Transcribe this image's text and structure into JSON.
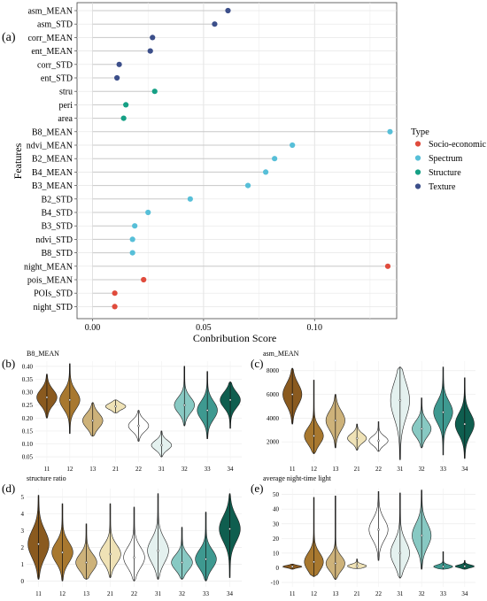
{
  "colors": {
    "Socio-economic": "#e04b3c",
    "Spectrum": "#57bfd8",
    "Structure": "#16a085",
    "Texture": "#3c4f8a"
  },
  "chart_data": [
    {
      "type": "scatter",
      "panel": "(a)",
      "xlabel": "Conbribution Score",
      "ylabel": "Features",
      "xlim": [
        -0.007,
        0.137
      ],
      "xticks": [
        0.0,
        0.05,
        0.1
      ],
      "xtick_labels": [
        "0.00",
        "0.05",
        "0.10"
      ],
      "grid": true,
      "legend_title": "Type",
      "legend_entries": [
        "Socio-economic",
        "Spectrum",
        "Structure",
        "Texture"
      ],
      "legend_position": "right",
      "features": [
        "asm_MEAN",
        "asm_STD",
        "corr_MEAN",
        "ent_MEAN",
        "corr_STD",
        "ent_STD",
        "stru",
        "peri",
        "area",
        "B8_MEAN",
        "ndvi_MEAN",
        "B2_MEAN",
        "B4_MEAN",
        "B3_MEAN",
        "B2_STD",
        "B4_STD",
        "B3_STD",
        "ndvi_STD",
        "B8_STD",
        "night_MEAN",
        "pois_MEAN",
        "POIs_STD",
        "night_STD"
      ],
      "values": [
        0.061,
        0.055,
        0.027,
        0.026,
        0.012,
        0.011,
        0.028,
        0.015,
        0.014,
        0.134,
        0.09,
        0.082,
        0.078,
        0.07,
        0.044,
        0.025,
        0.019,
        0.018,
        0.018,
        0.133,
        0.023,
        0.01,
        0.01
      ],
      "types": [
        "Texture",
        "Texture",
        "Texture",
        "Texture",
        "Texture",
        "Texture",
        "Structure",
        "Structure",
        "Structure",
        "Spectrum",
        "Spectrum",
        "Spectrum",
        "Spectrum",
        "Spectrum",
        "Spectrum",
        "Spectrum",
        "Spectrum",
        "Spectrum",
        "Spectrum",
        "Socio-economic",
        "Socio-economic",
        "Socio-economic",
        "Socio-economic"
      ]
    },
    {
      "type": "violin",
      "panel": "(b)",
      "title": "B8_MEAN",
      "categories": [
        "11",
        "12",
        "13",
        "21",
        "22",
        "31",
        "32",
        "33",
        "34"
      ],
      "ylim": [
        0.03,
        0.42
      ],
      "yticks": [
        0.05,
        0.1,
        0.15,
        0.2,
        0.25,
        0.3,
        0.35,
        0.4
      ],
      "ytick_labels": [
        "0.05",
        "0.10",
        "0.15",
        "0.20",
        "0.25",
        "0.30",
        "0.35",
        "0.40"
      ],
      "violins": [
        {
          "min": 0.2,
          "max": 0.37,
          "center": 0.28,
          "spread": 0.03
        },
        {
          "min": 0.14,
          "max": 0.41,
          "center": 0.27,
          "spread": 0.035
        },
        {
          "min": 0.13,
          "max": 0.26,
          "center": 0.19,
          "spread": 0.028
        },
        {
          "min": 0.22,
          "max": 0.27,
          "center": 0.245,
          "spread": 0.012
        },
        {
          "min": 0.11,
          "max": 0.23,
          "center": 0.17,
          "spread": 0.022
        },
        {
          "min": 0.05,
          "max": 0.15,
          "center": 0.095,
          "spread": 0.018
        },
        {
          "min": 0.17,
          "max": 0.4,
          "center": 0.25,
          "spread": 0.03
        },
        {
          "min": 0.12,
          "max": 0.38,
          "center": 0.23,
          "spread": 0.035
        },
        {
          "min": 0.16,
          "max": 0.34,
          "center": 0.27,
          "spread": 0.03
        }
      ]
    },
    {
      "type": "violin",
      "panel": "(c)",
      "title": "asm_MEAN",
      "categories": [
        "11",
        "12",
        "13",
        "21",
        "22",
        "31",
        "32",
        "33",
        "34"
      ],
      "ylim": [
        300,
        8800
      ],
      "yticks": [
        2000,
        4000,
        6000,
        8000
      ],
      "ytick_labels": [
        "2000",
        "4000",
        "6000",
        "8000"
      ],
      "violins": [
        {
          "min": 3500,
          "max": 8200,
          "center": 6000,
          "spread": 900
        },
        {
          "min": 1000,
          "max": 7200,
          "center": 2500,
          "spread": 700
        },
        {
          "min": 1500,
          "max": 6000,
          "center": 3800,
          "spread": 800
        },
        {
          "min": 1300,
          "max": 3500,
          "center": 2300,
          "spread": 380
        },
        {
          "min": 1200,
          "max": 3700,
          "center": 2100,
          "spread": 380
        },
        {
          "min": 500,
          "max": 8300,
          "center": 5500,
          "spread": 1500
        },
        {
          "min": 1500,
          "max": 5700,
          "center": 3100,
          "spread": 650
        },
        {
          "min": 900,
          "max": 8300,
          "center": 4500,
          "spread": 900
        },
        {
          "min": 600,
          "max": 7400,
          "center": 3500,
          "spread": 900
        }
      ]
    },
    {
      "type": "violin",
      "panel": "(d)",
      "title": "structure ratio",
      "categories": [
        "11",
        "12",
        "13",
        "21",
        "22",
        "31",
        "32",
        "33",
        "34"
      ],
      "ylim": [
        -0.35,
        5.5
      ],
      "yticks": [
        0,
        1,
        2,
        3,
        4,
        5
      ],
      "ytick_labels": [
        "0",
        "1",
        "2",
        "3",
        "4",
        "5"
      ],
      "violins": [
        {
          "min": 0.1,
          "max": 5.1,
          "center": 2.2,
          "spread": 0.8
        },
        {
          "min": 0.0,
          "max": 4.6,
          "center": 1.7,
          "spread": 0.6
        },
        {
          "min": 0.1,
          "max": 3.4,
          "center": 1.1,
          "spread": 0.5
        },
        {
          "min": 0.2,
          "max": 4.6,
          "center": 1.6,
          "spread": 0.55
        },
        {
          "min": 0.0,
          "max": 4.4,
          "center": 1.4,
          "spread": 0.6
        },
        {
          "min": 0.1,
          "max": 5.2,
          "center": 1.8,
          "spread": 0.7
        },
        {
          "min": 0.1,
          "max": 3.2,
          "center": 1.1,
          "spread": 0.45
        },
        {
          "min": 0.0,
          "max": 4.1,
          "center": 1.3,
          "spread": 0.55
        },
        {
          "min": 0.2,
          "max": 5.2,
          "center": 3.1,
          "spread": 0.75
        }
      ]
    },
    {
      "type": "violin",
      "panel": "(e)",
      "title": "average night-time light",
      "categories": [
        "11",
        "12",
        "13",
        "21",
        "22",
        "31",
        "32",
        "33",
        "34"
      ],
      "ylim": [
        -13,
        54
      ],
      "yticks": [
        -10,
        0,
        10,
        20,
        30,
        40,
        50
      ],
      "ytick_labels": [
        "-10",
        "0",
        "10",
        "20",
        "30",
        "40",
        "50"
      ],
      "violins": [
        {
          "min": -1,
          "max": 2.5,
          "center": 0.8,
          "spread": 0.8
        },
        {
          "min": -6,
          "max": 48,
          "center": 4,
          "spread": 6
        },
        {
          "min": -8,
          "max": 49,
          "center": 3,
          "spread": 5
        },
        {
          "min": -0.5,
          "max": 6,
          "center": 1.2,
          "spread": 1.2
        },
        {
          "min": 5,
          "max": 52,
          "center": 26,
          "spread": 7
        },
        {
          "min": -7,
          "max": 51,
          "center": 10,
          "spread": 8
        },
        {
          "min": -1,
          "max": 53,
          "center": 22,
          "spread": 8
        },
        {
          "min": -1,
          "max": 11,
          "center": 0.8,
          "spread": 1.2
        },
        {
          "min": -1,
          "max": 5,
          "center": 1.0,
          "spread": 1.0
        }
      ]
    }
  ]
}
